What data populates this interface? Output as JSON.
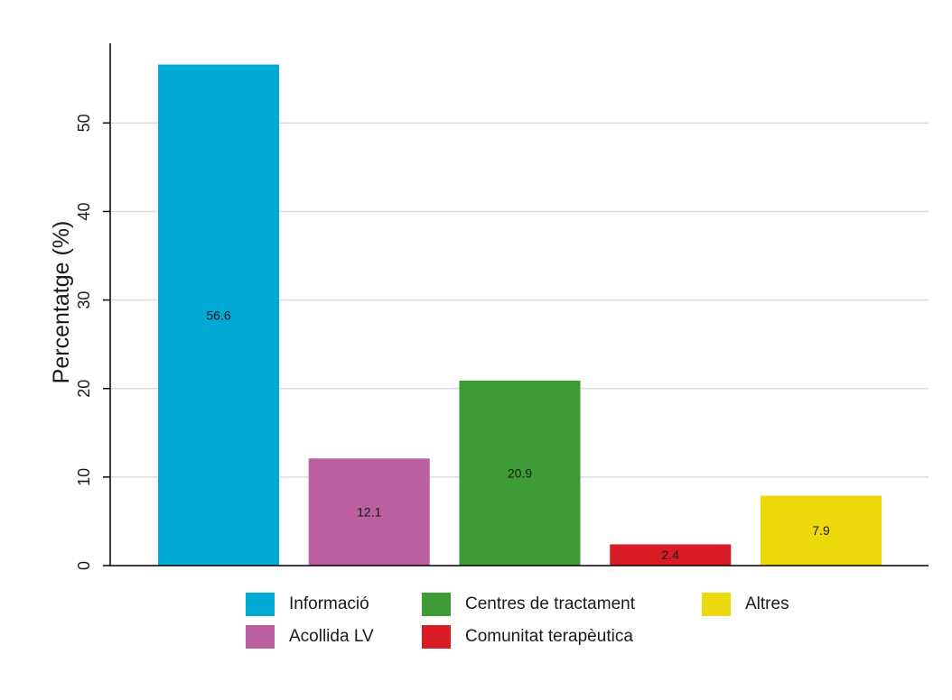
{
  "chart_data": {
    "type": "bar",
    "categories": [
      "Informació",
      "Acollida LV",
      "Centres de tractament",
      "Comunitat terapèutica",
      "Altres"
    ],
    "values": [
      56.6,
      12.1,
      20.9,
      2.4,
      7.9
    ],
    "data_labels": [
      "56.6",
      "12.1",
      "20.9",
      "2.4",
      "7.9"
    ],
    "colors": [
      "#00aad4",
      "#bb5fa0",
      "#3d9c35",
      "#d81b24",
      "#ecd90b"
    ],
    "title": "",
    "xlabel": "",
    "ylabel": "Percentatge (%)",
    "ylim": [
      0,
      59
    ],
    "yticks": [
      0,
      10,
      20,
      30,
      40,
      50
    ],
    "ytick_labels": [
      "0",
      "10",
      "20",
      "30",
      "40",
      "50"
    ],
    "grid": true,
    "legend_position": "bottom"
  },
  "legend": {
    "items": [
      {
        "label": "Informació",
        "color": "#00aad4"
      },
      {
        "label": "Acollida LV",
        "color": "#bb5fa0"
      },
      {
        "label": "Centres de tractament",
        "color": "#3d9c35"
      },
      {
        "label": "Comunitat terapèutica",
        "color": "#d81b24"
      },
      {
        "label": "Altres",
        "color": "#ecd90b"
      }
    ]
  }
}
